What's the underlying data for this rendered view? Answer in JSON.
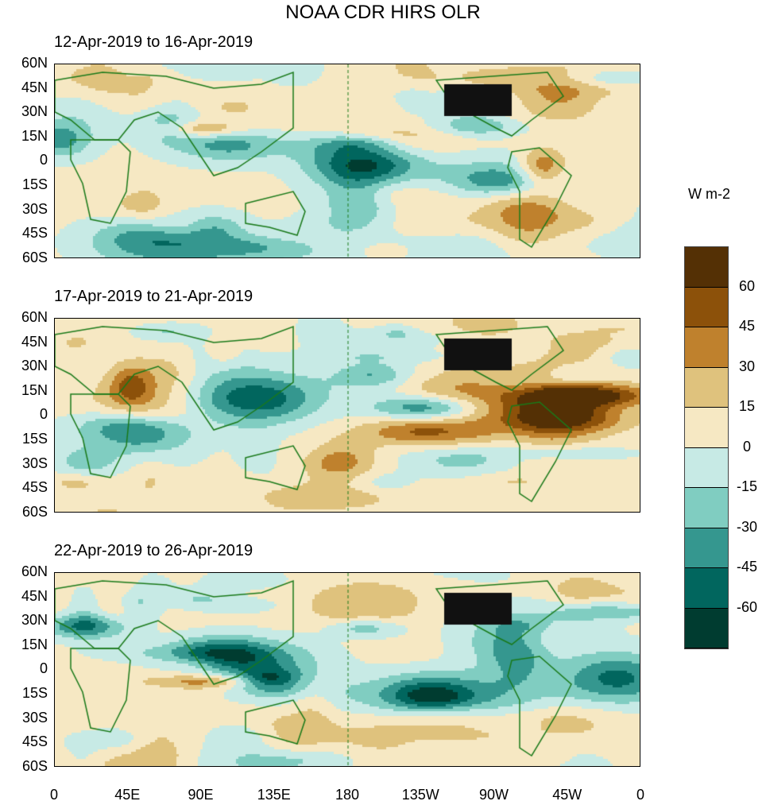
{
  "title": "NOAA CDR HIRS OLR",
  "panels": [
    {
      "label": "12-Apr-2019 to 16-Apr-2019"
    },
    {
      "label": "17-Apr-2019 to 21-Apr-2019"
    },
    {
      "label": "22-Apr-2019 to 26-Apr-2019"
    }
  ],
  "lat_ticks": [
    "60N",
    "45N",
    "30N",
    "15N",
    "0",
    "15S",
    "30S",
    "45S",
    "60S"
  ],
  "lon_ticks": [
    "0",
    "45E",
    "90E",
    "135E",
    "180",
    "135W",
    "90W",
    "45W",
    "0"
  ],
  "colorbar": {
    "unit": "W m-2",
    "labels": [
      "60",
      "45",
      "30",
      "15",
      "0",
      "-15",
      "-30",
      "-45",
      "-60"
    ],
    "colors": [
      "#543005",
      "#8c510a",
      "#bf812d",
      "#dfc27d",
      "#f6e8c3",
      "#c7eae5",
      "#80cdc1",
      "#35978f",
      "#01665e",
      "#003c30"
    ]
  },
  "colors": {
    "coast": "#1a7a1a"
  }
}
